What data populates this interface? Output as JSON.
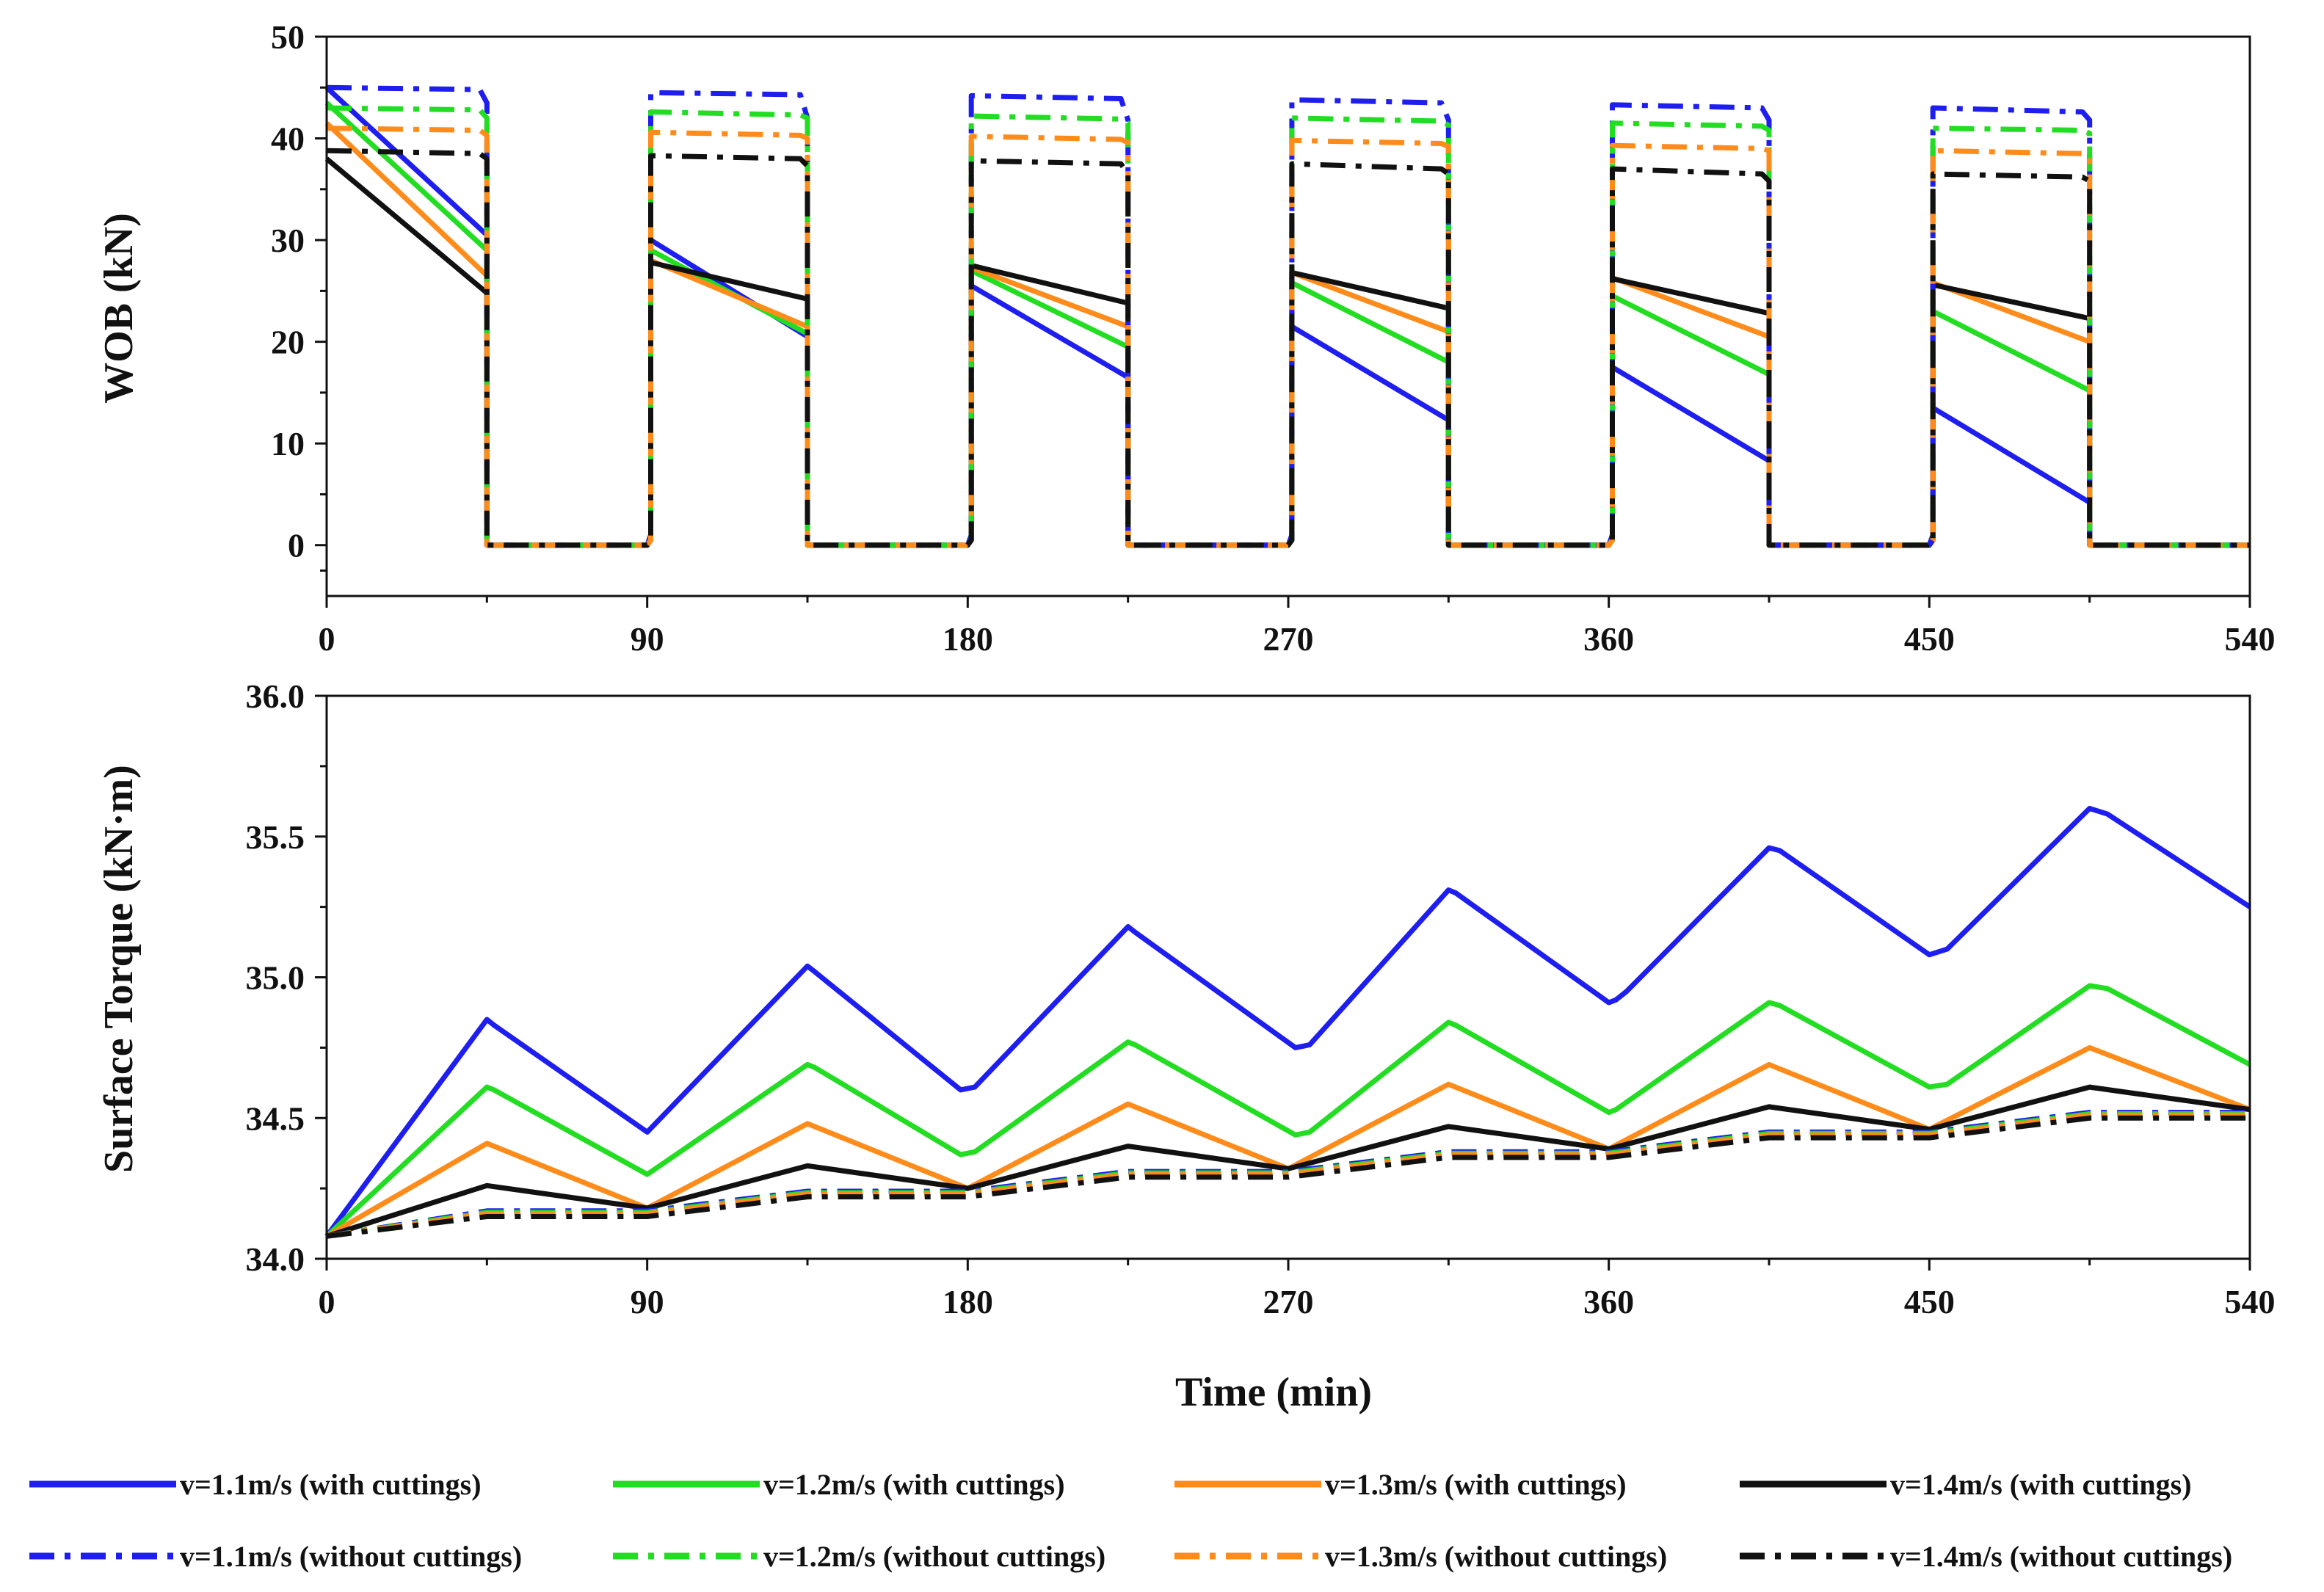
{
  "chart_data": [
    {
      "type": "line",
      "xlabel": "",
      "ylabel": "WOB (kN)",
      "xlim": [
        0,
        540
      ],
      "ylim": [
        -5,
        50
      ],
      "xticks": [
        "0",
        "90",
        "180",
        "270",
        "360",
        "450",
        "540"
      ],
      "yticks": [
        "0",
        "10",
        "20",
        "30",
        "40",
        "50"
      ],
      "xtick_values": [
        0,
        90,
        180,
        270,
        360,
        450,
        540
      ],
      "ytick_values": [
        0,
        10,
        20,
        30,
        40,
        50
      ],
      "series": [
        {
          "name": "v=1.1m/s (with cuttings)",
          "color": "#1e1ef0",
          "dash": "solid",
          "x": [
            0,
            45,
            45,
            90,
            91,
            91,
            135,
            135,
            180,
            181,
            181,
            225,
            225,
            270,
            271,
            271,
            315,
            315,
            360,
            361,
            361,
            405,
            405,
            450,
            451,
            451,
            495,
            495,
            540
          ],
          "y": [
            45,
            30.5,
            0,
            0,
            1,
            30,
            20.5,
            0,
            0,
            1,
            25.5,
            16.5,
            0,
            0,
            1,
            21.5,
            12.3,
            0,
            0,
            1,
            17.5,
            8.3,
            0,
            0,
            1,
            13.5,
            4.2,
            0,
            0
          ]
        },
        {
          "name": "v=1.2m/s (with cuttings)",
          "color": "#22dd22",
          "dash": "solid",
          "x": [
            0,
            45,
            45,
            90,
            91,
            91,
            135,
            135,
            180,
            181,
            181,
            225,
            225,
            270,
            271,
            271,
            315,
            315,
            360,
            361,
            361,
            405,
            405,
            450,
            451,
            451,
            495,
            495,
            540
          ],
          "y": [
            43.5,
            29,
            0,
            0,
            0.5,
            29,
            20.8,
            0,
            0,
            0.5,
            27,
            19.5,
            0,
            0,
            0.5,
            25.8,
            18,
            0,
            0,
            0.5,
            24.5,
            16.8,
            0,
            0,
            0.5,
            23,
            15.2,
            0,
            0
          ]
        },
        {
          "name": "v=1.3m/s (with cuttings)",
          "color": "#ff8c1a",
          "dash": "solid",
          "x": [
            0,
            45,
            45,
            90,
            91,
            91,
            135,
            135,
            180,
            181,
            181,
            225,
            225,
            270,
            271,
            271,
            315,
            315,
            360,
            361,
            361,
            405,
            405,
            450,
            451,
            451,
            495,
            495,
            540
          ],
          "y": [
            41.5,
            26.5,
            0,
            0,
            0.5,
            28,
            21.5,
            0,
            0,
            0.5,
            27.3,
            21.5,
            0,
            0,
            0.5,
            26.8,
            21,
            0,
            0,
            0.5,
            26.3,
            20.5,
            0,
            0,
            0.5,
            25.8,
            20,
            0,
            0
          ]
        },
        {
          "name": "v=1.4m/s (with cuttings)",
          "color": "#111111",
          "dash": "solid",
          "x": [
            0,
            45,
            45,
            90,
            91,
            91,
            135,
            135,
            180,
            181,
            181,
            225,
            225,
            270,
            271,
            271,
            315,
            315,
            360,
            361,
            361,
            405,
            405,
            450,
            451,
            451,
            495,
            495,
            540
          ],
          "y": [
            38,
            24.8,
            0,
            0,
            0.5,
            27.8,
            24.2,
            0,
            0,
            0.5,
            27.5,
            23.8,
            0,
            0,
            0.5,
            26.8,
            23.3,
            0,
            0,
            0.5,
            26.2,
            22.8,
            0,
            0,
            0.5,
            25.6,
            22.3,
            0,
            0
          ]
        },
        {
          "name": "v=1.1m/s (without cuttings)",
          "color": "#1e1ef0",
          "dash": "dashdot",
          "x": [
            0,
            43,
            45,
            45,
            90,
            91,
            91,
            133,
            135,
            135,
            180,
            181,
            181,
            223,
            225,
            225,
            270,
            271,
            271,
            313,
            315,
            315,
            360,
            361,
            361,
            403,
            405,
            405,
            450,
            451,
            451,
            493,
            495,
            495,
            540
          ],
          "y": [
            45,
            44.8,
            43.5,
            0,
            0,
            0.5,
            44.5,
            44.3,
            42,
            0,
            0,
            0.5,
            44.2,
            43.9,
            41.8,
            0,
            0,
            0.5,
            43.8,
            43.5,
            41.8,
            0,
            0,
            0.5,
            43.3,
            43,
            41.8,
            0,
            0,
            0.5,
            43,
            42.6,
            41.8,
            0,
            0
          ]
        },
        {
          "name": "v=1.2m/s (without cuttings)",
          "color": "#22dd22",
          "dash": "dashdot",
          "x": [
            0,
            43,
            45,
            45,
            90,
            91,
            91,
            133,
            135,
            135,
            180,
            181,
            181,
            223,
            225,
            225,
            270,
            271,
            271,
            313,
            315,
            315,
            360,
            361,
            361,
            403,
            405,
            405,
            450,
            451,
            451,
            493,
            495,
            495,
            540
          ],
          "y": [
            43,
            42.8,
            42,
            0,
            0,
            0.5,
            42.6,
            42.3,
            42,
            0,
            0,
            0.5,
            42.2,
            41.9,
            41.5,
            0,
            0,
            0.5,
            42,
            41.7,
            41.3,
            0,
            0,
            0.5,
            41.5,
            41.2,
            40.8,
            0,
            0,
            0.5,
            41,
            40.8,
            40.5,
            0,
            0
          ]
        },
        {
          "name": "v=1.3m/s (without cuttings)",
          "color": "#ff8c1a",
          "dash": "dashdot",
          "x": [
            0,
            43,
            45,
            45,
            90,
            91,
            91,
            133,
            135,
            135,
            180,
            181,
            181,
            223,
            225,
            225,
            270,
            271,
            271,
            313,
            315,
            315,
            360,
            361,
            361,
            403,
            405,
            405,
            450,
            451,
            451,
            493,
            495,
            495,
            540
          ],
          "y": [
            41,
            40.8,
            40.3,
            0,
            0,
            0.5,
            40.6,
            40.3,
            40,
            0,
            0,
            0.5,
            40.2,
            39.9,
            39.6,
            0,
            0,
            0.5,
            39.8,
            39.5,
            39.2,
            0,
            0,
            0.5,
            39.3,
            39,
            38.8,
            0,
            0,
            0.5,
            38.8,
            38.5,
            38.2,
            0,
            0
          ]
        },
        {
          "name": "v=1.4m/s (without cuttings)",
          "color": "#111111",
          "dash": "dashdot",
          "x": [
            0,
            43,
            45,
            45,
            90,
            91,
            91,
            133,
            135,
            135,
            180,
            181,
            181,
            223,
            225,
            225,
            270,
            271,
            271,
            313,
            315,
            315,
            360,
            361,
            361,
            403,
            405,
            405,
            450,
            451,
            451,
            493,
            495,
            495,
            540
          ],
          "y": [
            38.8,
            38.5,
            38,
            0,
            0,
            0.5,
            38.3,
            38,
            37.3,
            0,
            0,
            0.5,
            37.8,
            37.5,
            36.5,
            0,
            0,
            0.5,
            37.5,
            37,
            36.5,
            0,
            0,
            0.5,
            37,
            36.5,
            35.8,
            0,
            0,
            0.5,
            36.5,
            36.2,
            35.8,
            0,
            0
          ]
        }
      ]
    },
    {
      "type": "line",
      "xlabel": "Time (min)",
      "ylabel": "Surface Torque (kN·m)",
      "xlim": [
        0,
        540
      ],
      "ylim": [
        34.0,
        36.0
      ],
      "xticks": [
        "0",
        "90",
        "180",
        "270",
        "360",
        "450",
        "540"
      ],
      "yticks": [
        "34.0",
        "34.5",
        "35.0",
        "35.5",
        "36.0"
      ],
      "xtick_values": [
        0,
        90,
        180,
        270,
        360,
        450,
        540
      ],
      "ytick_values": [
        34.0,
        34.5,
        35.0,
        35.5,
        36.0
      ],
      "series": [
        {
          "name": "v=1.1m/s (with cuttings)",
          "color": "#1e1ef0",
          "dash": "solid",
          "x": [
            0,
            45,
            47,
            90,
            135,
            137,
            178,
            182,
            225,
            227,
            272,
            276,
            315,
            317,
            360,
            362,
            365,
            405,
            408,
            450,
            455,
            495,
            500,
            540
          ],
          "y": [
            34.08,
            34.85,
            34.83,
            34.45,
            35.04,
            35.02,
            34.6,
            34.61,
            35.18,
            35.16,
            34.75,
            34.76,
            35.31,
            35.3,
            34.91,
            34.92,
            34.95,
            35.46,
            35.45,
            35.08,
            35.1,
            35.6,
            35.58,
            35.25
          ]
        },
        {
          "name": "v=1.2m/s (with cuttings)",
          "color": "#22dd22",
          "dash": "solid",
          "x": [
            0,
            45,
            47,
            90,
            135,
            137,
            178,
            182,
            225,
            227,
            272,
            276,
            315,
            317,
            360,
            362,
            405,
            408,
            450,
            455,
            495,
            500,
            540
          ],
          "y": [
            34.08,
            34.61,
            34.6,
            34.3,
            34.69,
            34.68,
            34.37,
            34.38,
            34.77,
            34.76,
            34.44,
            34.45,
            34.84,
            34.83,
            34.52,
            34.53,
            34.91,
            34.9,
            34.61,
            34.62,
            34.97,
            34.96,
            34.69
          ]
        },
        {
          "name": "v=1.3m/s (with cuttings)",
          "color": "#ff8c1a",
          "dash": "solid",
          "x": [
            0,
            45,
            90,
            135,
            180,
            225,
            270,
            315,
            360,
            405,
            450,
            495,
            540
          ],
          "y": [
            34.08,
            34.41,
            34.18,
            34.48,
            34.25,
            34.55,
            34.32,
            34.62,
            34.39,
            34.69,
            34.46,
            34.75,
            34.53
          ]
        },
        {
          "name": "v=1.4m/s (with cuttings)",
          "color": "#111111",
          "dash": "solid",
          "x": [
            0,
            45,
            90,
            135,
            180,
            225,
            270,
            315,
            360,
            405,
            450,
            495,
            540
          ],
          "y": [
            34.08,
            34.26,
            34.18,
            34.33,
            34.25,
            34.4,
            34.32,
            34.47,
            34.39,
            34.54,
            34.46,
            34.61,
            34.53
          ]
        },
        {
          "name": "v=1.1m/s (without cuttings)",
          "color": "#1e1ef0",
          "dash": "dashdot",
          "x": [
            0,
            45,
            90,
            135,
            180,
            225,
            270,
            315,
            360,
            405,
            450,
            495,
            540
          ],
          "y": [
            34.08,
            34.17,
            34.17,
            34.24,
            34.24,
            34.31,
            34.31,
            34.38,
            34.38,
            34.45,
            34.45,
            34.52,
            34.52
          ]
        },
        {
          "name": "v=1.2m/s (without cuttings)",
          "color": "#22dd22",
          "dash": "dashdot",
          "x": [
            0,
            45,
            90,
            135,
            180,
            225,
            270,
            315,
            360,
            405,
            450,
            495,
            540
          ],
          "y": [
            34.08,
            34.165,
            34.165,
            34.235,
            34.235,
            34.305,
            34.305,
            34.375,
            34.375,
            34.445,
            34.445,
            34.515,
            34.515
          ]
        },
        {
          "name": "v=1.3m/s (without cuttings)",
          "color": "#ff8c1a",
          "dash": "dashdot",
          "x": [
            0,
            45,
            90,
            135,
            180,
            225,
            270,
            315,
            360,
            405,
            450,
            495,
            540
          ],
          "y": [
            34.08,
            34.16,
            34.16,
            34.23,
            34.23,
            34.3,
            34.3,
            34.37,
            34.37,
            34.44,
            34.44,
            34.51,
            34.51
          ]
        },
        {
          "name": "v=1.4m/s (without cuttings)",
          "color": "#111111",
          "dash": "dashdot",
          "x": [
            0,
            45,
            90,
            135,
            180,
            225,
            270,
            315,
            360,
            405,
            450,
            495,
            540
          ],
          "y": [
            34.08,
            34.15,
            34.15,
            34.22,
            34.22,
            34.29,
            34.29,
            34.36,
            34.36,
            34.43,
            34.43,
            34.5,
            34.5
          ]
        }
      ]
    }
  ],
  "legend": {
    "placement": "bottom",
    "items": [
      {
        "label": "v=1.1m/s (with cuttings)",
        "color": "#1e1ef0",
        "dash": "solid"
      },
      {
        "label": "v=1.2m/s (with cuttings)",
        "color": "#22dd22",
        "dash": "solid"
      },
      {
        "label": "v=1.3m/s (with cuttings)",
        "color": "#ff8c1a",
        "dash": "solid"
      },
      {
        "label": "v=1.4m/s (with cuttings)",
        "color": "#111111",
        "dash": "solid"
      },
      {
        "label": "v=1.1m/s (without cuttings)",
        "color": "#1e1ef0",
        "dash": "dashdot"
      },
      {
        "label": "v=1.2m/s (without cuttings)",
        "color": "#22dd22",
        "dash": "dashdot"
      },
      {
        "label": "v=1.3m/s (without cuttings)",
        "color": "#ff8c1a",
        "dash": "dashdot"
      },
      {
        "label": "v=1.4m/s (without cuttings)",
        "color": "#111111",
        "dash": "dashdot"
      }
    ]
  }
}
